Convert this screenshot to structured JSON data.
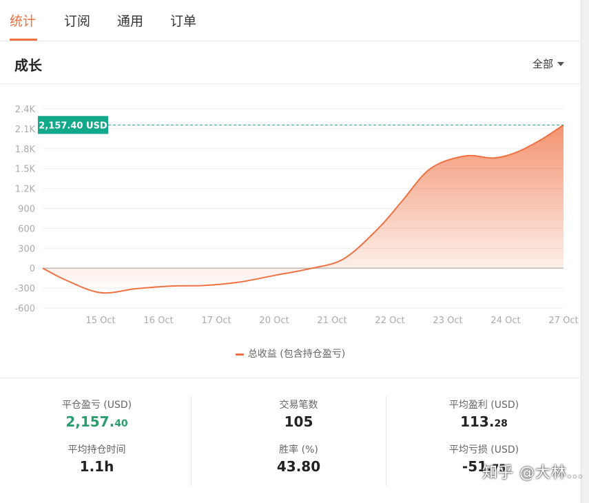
{
  "tabs": [
    {
      "label": "统计",
      "active": true
    },
    {
      "label": "订阅",
      "active": false
    },
    {
      "label": "通用",
      "active": false
    },
    {
      "label": "订单",
      "active": false
    }
  ],
  "section": {
    "title": "成长",
    "filter_label": "全部"
  },
  "chart_data": {
    "type": "area",
    "title": "",
    "xlabel": "",
    "ylabel": "",
    "x_ticks": [
      "15 Oct",
      "16 Oct",
      "17 Oct",
      "20 Oct",
      "21 Oct",
      "22 Oct",
      "23 Oct",
      "24 Oct",
      "27 Oct"
    ],
    "y_ticks": [
      2400,
      2100,
      1800,
      1500,
      1200,
      900,
      600,
      300,
      0,
      -300,
      -600
    ],
    "y_tick_labels": [
      "2.4K",
      "2.1K",
      "1.8K",
      "1.5K",
      "1.2K",
      "900",
      "600",
      "300",
      "0",
      "-300",
      "-600"
    ],
    "ylim": [
      -600,
      2400
    ],
    "grid": true,
    "series": [
      {
        "name": "总收益 (包含持仓盈亏)",
        "color": "#f07040",
        "x": [
          0,
          0.4,
          1,
          1.6,
          2.2,
          2.8,
          3.4,
          4.0,
          4.6,
          5.2,
          5.8,
          6.2,
          6.7,
          7.3,
          7.8,
          8.2,
          8.6,
          9.0
        ],
        "y": [
          0,
          -180,
          -370,
          -310,
          -270,
          -260,
          -210,
          -110,
          -10,
          140,
          600,
          1000,
          1500,
          1690,
          1660,
          1750,
          1930,
          2157.4
        ]
      }
    ],
    "last_value_label": "2,157.40 USD",
    "legend_position": "bottom"
  },
  "colors": {
    "accent": "#f07040",
    "positive": "#2a9d6c",
    "callout": "#12a88a"
  },
  "stats": [
    [
      {
        "label": "平仓盈亏 (USD)",
        "value_main": "2,157.",
        "value_small": "40",
        "color": "green"
      },
      {
        "label": "平均持仓时间",
        "value_main": "1.1h",
        "value_small": ""
      }
    ],
    [
      {
        "label": "交易笔数",
        "value_main": "105",
        "value_small": ""
      },
      {
        "label": "胜率 (%)",
        "value_main": "43.80",
        "value_small": ""
      }
    ],
    [
      {
        "label": "平均盈利 (USD)",
        "value_main": "113.",
        "value_small": "28"
      },
      {
        "label": "平均亏损 (USD)",
        "value_main": "-51.",
        "value_small": "75"
      }
    ]
  ],
  "watermark": "知乎 @大林..."
}
